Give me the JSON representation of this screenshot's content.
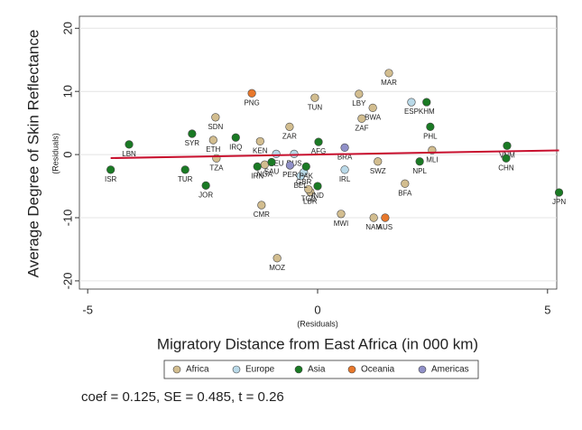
{
  "chart_data": {
    "type": "scatter",
    "y_title": "Average Degree of Skin Reflectance",
    "y_subtitle": "(Residuals)",
    "x_subtitle": "(Residuals)",
    "x_title": "Migratory Distance from East Africa (in 000 km)",
    "note": "coef = 0.125, SE = 0.485, t = 0.26",
    "xlim": [
      -5.18,
      5.2
    ],
    "ylim": [
      -21.3,
      21.9
    ],
    "xticks": [
      -5,
      0,
      5
    ],
    "yticks": [
      -20,
      -10,
      0,
      10,
      20
    ],
    "grid": true,
    "fit_line": {
      "color": "#c8102e",
      "x": [
        -4.5,
        5.25
      ],
      "y": [
        -0.56,
        0.66
      ]
    },
    "series": [
      {
        "name": "Africa",
        "color": "#d2bd8f",
        "labels": [
          "MAR",
          "LBY",
          "TUN",
          "BWA",
          "ZAF",
          "SDN",
          "ZAR",
          "ETH",
          "KEN",
          "MLI",
          "TZA",
          "SWZ",
          "BFA",
          "CMR",
          "MWI",
          "NAM",
          "MOZ",
          "LBR",
          "TCD",
          "NGA"
        ],
        "x": [
          1.55,
          0.9,
          -0.06,
          1.2,
          0.96,
          -2.22,
          -0.61,
          -2.27,
          -1.25,
          2.49,
          -2.2,
          1.31,
          1.9,
          -1.22,
          0.51,
          1.22,
          -0.88,
          -0.16,
          -0.2,
          -1.15
        ],
        "values": [
          12.9,
          9.6,
          9.0,
          7.4,
          5.7,
          5.9,
          4.4,
          2.3,
          2.1,
          0.7,
          -0.6,
          -1.1,
          -4.6,
          -8.0,
          -9.4,
          -10,
          -16.4,
          -5.9,
          -5.5,
          -1.6
        ]
      },
      {
        "name": "Europe",
        "color": "#b9d9e8",
        "labels": [
          "ESP",
          "DEU",
          "RUS",
          "BEL",
          "GBR",
          "IRL"
        ],
        "x": [
          2.04,
          -0.9,
          -0.51,
          -0.37,
          -0.3,
          0.59
        ],
        "values": [
          8.3,
          0.1,
          0.1,
          -3.4,
          -2.8,
          -2.4
        ]
      },
      {
        "name": "Asia",
        "color": "#1a7a24",
        "labels": [
          "KHM",
          "PHL",
          "SYR",
          "IRQ",
          "AFG",
          "LBN",
          "VNM",
          "CHN",
          "NPL",
          "ISR",
          "TUR",
          "IRN",
          "SAU",
          "PAK",
          "JOR",
          "IND",
          "JPN"
        ],
        "x": [
          2.37,
          2.45,
          -2.73,
          -1.78,
          0.02,
          -4.1,
          4.12,
          4.1,
          2.22,
          -4.5,
          -2.88,
          -1.31,
          -1.0,
          -0.25,
          -2.43,
          0,
          5.25
        ],
        "values": [
          8.3,
          4.4,
          3.3,
          2.7,
          2.0,
          1.6,
          1.4,
          -0.6,
          -1.1,
          -2.4,
          -2.4,
          -1.9,
          -1.2,
          -1.9,
          -4.9,
          -5.0,
          -6.0
        ]
      },
      {
        "name": "Oceania",
        "color": "#e8782c",
        "labels": [
          "PNG",
          "AUS"
        ],
        "x": [
          -1.43,
          1.47
        ],
        "values": [
          9.7,
          -10
        ]
      },
      {
        "name": "Americas",
        "color": "#9090c8",
        "labels": [
          "BRA",
          "PER"
        ],
        "x": [
          0.59,
          -0.6
        ],
        "values": [
          1.1,
          -1.7
        ]
      }
    ]
  }
}
